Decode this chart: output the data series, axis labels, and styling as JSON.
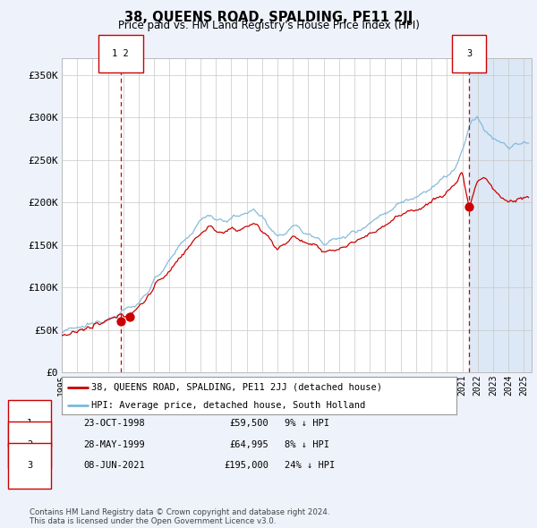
{
  "title": "38, QUEENS ROAD, SPALDING, PE11 2JJ",
  "subtitle": "Price paid vs. HM Land Registry's House Price Index (HPI)",
  "legend_line1": "38, QUEENS ROAD, SPALDING, PE11 2JJ (detached house)",
  "legend_line2": "HPI: Average price, detached house, South Holland",
  "transactions": [
    {
      "num": 1,
      "date": "23-OCT-1998",
      "price": 59500,
      "pct": "9%",
      "dir": "↓"
    },
    {
      "num": 2,
      "date": "28-MAY-1999",
      "price": 64995,
      "pct": "8%",
      "dir": "↓"
    },
    {
      "num": 3,
      "date": "08-JUN-2021",
      "price": 195000,
      "pct": "24%",
      "dir": "↓"
    }
  ],
  "transaction_dates_decimal": [
    1998.81,
    1999.4,
    2021.44
  ],
  "transaction_prices": [
    59500,
    64995,
    195000
  ],
  "vline_dates": [
    1998.81,
    2021.44
  ],
  "hpi_color": "#7fb8d8",
  "price_color": "#cc0000",
  "vline_color": "#cc0000",
  "background_color": "#eef2fb",
  "plot_bg_color": "#ffffff",
  "shade_color": "#dce8f5",
  "ylim": [
    0,
    370000
  ],
  "xlim_start": 1995.0,
  "xlim_end": 2025.5,
  "shade_start": 2021.44,
  "shade_end": 2025.5,
  "footer": "Contains HM Land Registry data © Crown copyright and database right 2024.\nThis data is licensed under the Open Government Licence v3.0.",
  "yticks": [
    0,
    50000,
    100000,
    150000,
    200000,
    250000,
    300000,
    350000
  ],
  "ytick_labels": [
    "£0",
    "£50K",
    "£100K",
    "£150K",
    "£200K",
    "£250K",
    "£300K",
    "£350K"
  ]
}
